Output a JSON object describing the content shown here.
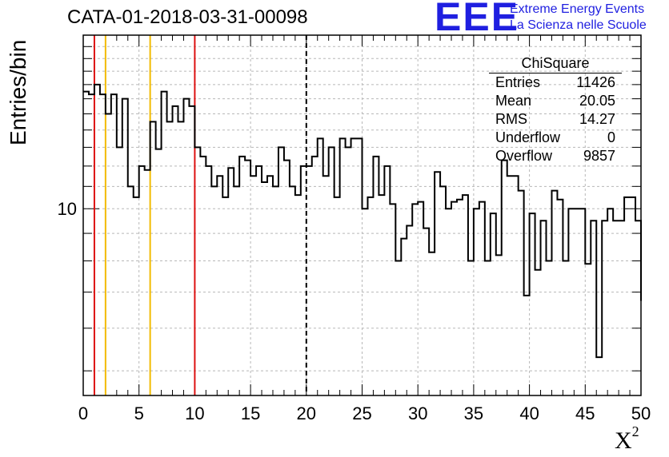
{
  "title": "CATA-01-2018-03-31-00098",
  "logo": {
    "mark": "EEE",
    "line1": "Extreme Energy Events",
    "line2": "La Scienza nelle Scuole"
  },
  "stats": {
    "name": "ChiSquare",
    "rows": [
      {
        "label": "Entries",
        "value": "11426"
      },
      {
        "label": "Mean",
        "value": "20.05"
      },
      {
        "label": "RMS",
        "value": "14.27"
      },
      {
        "label": "Underflow",
        "value": "0"
      },
      {
        "label": "Overflow",
        "value": "9857"
      }
    ]
  },
  "colors": {
    "cut_red": "#dd1111",
    "cut_yellow": "#f2bb00",
    "logo": "#1f1fe0"
  },
  "chart_data": {
    "type": "histogram",
    "title": "CATA-01-2018-03-31-00098",
    "xlabel": "X²",
    "ylabel": "Entries/bin",
    "xlim": [
      0,
      50
    ],
    "ylim": [
      4.5,
      21
    ],
    "y_scale": "log",
    "grid": true,
    "bin_width": 0.5,
    "x_ticks": [
      "0",
      "5",
      "10",
      "15",
      "20",
      "25",
      "30",
      "35",
      "40",
      "45",
      "50"
    ],
    "y_tick_labels": [
      {
        "value": 10,
        "label": "10"
      }
    ],
    "values": [
      16.5,
      16.3,
      17.0,
      16.3,
      15.0,
      16.3,
      13.0,
      16.0,
      11.0,
      10.5,
      12.0,
      11.8,
      14.5,
      12.9,
      16.5,
      14.5,
      15.5,
      14.5,
      16.0,
      15.5,
      13.0,
      12.5,
      12.0,
      11.0,
      11.5,
      10.5,
      11.9,
      11.0,
      12.5,
      12.3,
      11.5,
      12.0,
      11.2,
      11.5,
      11.0,
      13.0,
      12.3,
      11.0,
      10.6,
      12.0,
      12.0,
      12.5,
      13.5,
      11.5,
      13.0,
      10.5,
      13.5,
      13.0,
      13.5,
      13.5,
      10.0,
      10.5,
      12.5,
      10.6,
      12.0,
      10.2,
      8.0,
      8.8,
      9.3,
      10.2,
      10.3,
      9.2,
      8.3,
      11.7,
      11.0,
      10.0,
      10.3,
      10.4,
      10.6,
      8.0,
      10.0,
      10.3,
      8.0,
      9.8,
      8.2,
      12.3,
      11.5,
      11.5,
      10.8,
      6.9,
      9.8,
      7.7,
      9.5,
      8.0,
      10.8,
      10.4,
      8.0,
      10.0,
      10.0,
      10.0,
      7.9,
      9.5,
      5.3,
      9.5,
      10.0,
      9.5,
      9.5,
      10.5,
      10.5,
      9.5
    ],
    "vertical_lines": [
      {
        "x": 1,
        "color": "#dd1111",
        "style": "solid"
      },
      {
        "x": 2,
        "color": "#f2bb00",
        "style": "solid"
      },
      {
        "x": 6,
        "color": "#f2bb00",
        "style": "solid"
      },
      {
        "x": 10,
        "color": "#dd1111",
        "style": "solid"
      },
      {
        "x": 20,
        "color": "#000000",
        "style": "dashed"
      }
    ]
  }
}
